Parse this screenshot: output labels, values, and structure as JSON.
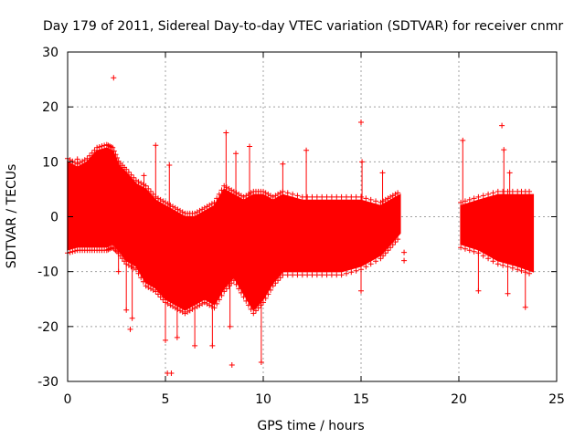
{
  "chart_data": {
    "type": "scatter",
    "title": "Day 179 of 2011, Sidereal Day-to-day VTEC variation (SDTVAR) for receiver cnmr",
    "xlabel": "GPS time / hours",
    "ylabel": "SDTVAR / TECUs",
    "xlim": [
      0,
      25
    ],
    "ylim": [
      -30,
      30
    ],
    "x_ticks": [
      0,
      5,
      10,
      15,
      20,
      25
    ],
    "y_ticks": [
      -30,
      -20,
      -10,
      0,
      10,
      20,
      30
    ],
    "grid": true,
    "marker": "+",
    "series_color": "#ff0000",
    "envelope": [
      {
        "x": 0.0,
        "hi": 10,
        "lo": -6
      },
      {
        "x": 0.5,
        "hi": 9,
        "lo": -5.5
      },
      {
        "x": 1.0,
        "hi": 10,
        "lo": -5.5
      },
      {
        "x": 1.5,
        "hi": 12,
        "lo": -5.5
      },
      {
        "x": 2.0,
        "hi": 12.5,
        "lo": -5.5
      },
      {
        "x": 2.3,
        "hi": 12,
        "lo": -5
      },
      {
        "x": 2.6,
        "hi": 9.5,
        "lo": -6
      },
      {
        "x": 3.0,
        "hi": 8,
        "lo": -8
      },
      {
        "x": 3.5,
        "hi": 6,
        "lo": -9
      },
      {
        "x": 4.0,
        "hi": 5,
        "lo": -12
      },
      {
        "x": 4.5,
        "hi": 3,
        "lo": -13
      },
      {
        "x": 5.0,
        "hi": 2,
        "lo": -15
      },
      {
        "x": 5.5,
        "hi": 1,
        "lo": -16
      },
      {
        "x": 6.0,
        "hi": 0,
        "lo": -17
      },
      {
        "x": 6.5,
        "hi": 0,
        "lo": -16
      },
      {
        "x": 7.0,
        "hi": 1,
        "lo": -15
      },
      {
        "x": 7.5,
        "hi": 2,
        "lo": -16
      },
      {
        "x": 8.0,
        "hi": 5,
        "lo": -13
      },
      {
        "x": 8.5,
        "hi": 4,
        "lo": -11
      },
      {
        "x": 9.0,
        "hi": 3,
        "lo": -14
      },
      {
        "x": 9.5,
        "hi": 4,
        "lo": -17
      },
      {
        "x": 10.0,
        "hi": 4,
        "lo": -15
      },
      {
        "x": 10.5,
        "hi": 3,
        "lo": -12
      },
      {
        "x": 11.0,
        "hi": 4,
        "lo": -10
      },
      {
        "x": 12.0,
        "hi": 3,
        "lo": -10
      },
      {
        "x": 13.0,
        "hi": 3,
        "lo": -10
      },
      {
        "x": 14.0,
        "hi": 3,
        "lo": -10
      },
      {
        "x": 15.0,
        "hi": 3,
        "lo": -9
      },
      {
        "x": 16.0,
        "hi": 2,
        "lo": -7
      },
      {
        "x": 16.5,
        "hi": 3,
        "lo": -5
      },
      {
        "x": 17.0,
        "hi": 4,
        "lo": -3
      },
      {
        "x": 20.1,
        "hi": 2,
        "lo": -5
      },
      {
        "x": 21.0,
        "hi": 3,
        "lo": -6
      },
      {
        "x": 22.0,
        "hi": 4,
        "lo": -8
      },
      {
        "x": 23.0,
        "hi": 4,
        "lo": -9
      },
      {
        "x": 23.8,
        "hi": 4,
        "lo": -10
      }
    ],
    "outliers": [
      {
        "x": 2.35,
        "y": 25.3
      },
      {
        "x": 15.0,
        "y": 17.2
      },
      {
        "x": 22.2,
        "y": 16.6
      },
      {
        "x": 8.1,
        "y": 15.3
      },
      {
        "x": 20.2,
        "y": 13.9
      },
      {
        "x": 4.5,
        "y": 13
      },
      {
        "x": 9.3,
        "y": 12.8
      },
      {
        "x": 22.3,
        "y": 12.2
      },
      {
        "x": 12.2,
        "y": 12.1
      },
      {
        "x": 8.6,
        "y": 11.5
      },
      {
        "x": 15.05,
        "y": 10
      },
      {
        "x": 11.0,
        "y": 9.6
      },
      {
        "x": 5.2,
        "y": 9.4
      },
      {
        "x": 16.1,
        "y": 8
      },
      {
        "x": 22.6,
        "y": 8
      },
      {
        "x": 3.9,
        "y": 7.5
      },
      {
        "x": 0.5,
        "y": 10.5
      },
      {
        "x": 17.2,
        "y": -6.5
      },
      {
        "x": 17.2,
        "y": -8
      },
      {
        "x": 2.6,
        "y": -10
      },
      {
        "x": 15.0,
        "y": -13.5
      },
      {
        "x": 21.0,
        "y": -13.5
      },
      {
        "x": 3.0,
        "y": -17
      },
      {
        "x": 3.3,
        "y": -18.5
      },
      {
        "x": 3.2,
        "y": -20.5
      },
      {
        "x": 8.3,
        "y": -20
      },
      {
        "x": 5.0,
        "y": -22.5
      },
      {
        "x": 5.6,
        "y": -22
      },
      {
        "x": 6.5,
        "y": -23.5
      },
      {
        "x": 7.4,
        "y": -23.5
      },
      {
        "x": 5.1,
        "y": -28.5
      },
      {
        "x": 5.3,
        "y": -28.5
      },
      {
        "x": 8.4,
        "y": -27
      },
      {
        "x": 9.9,
        "y": -26.5
      },
      {
        "x": 23.4,
        "y": -16.5
      },
      {
        "x": 22.5,
        "y": -14
      }
    ]
  }
}
